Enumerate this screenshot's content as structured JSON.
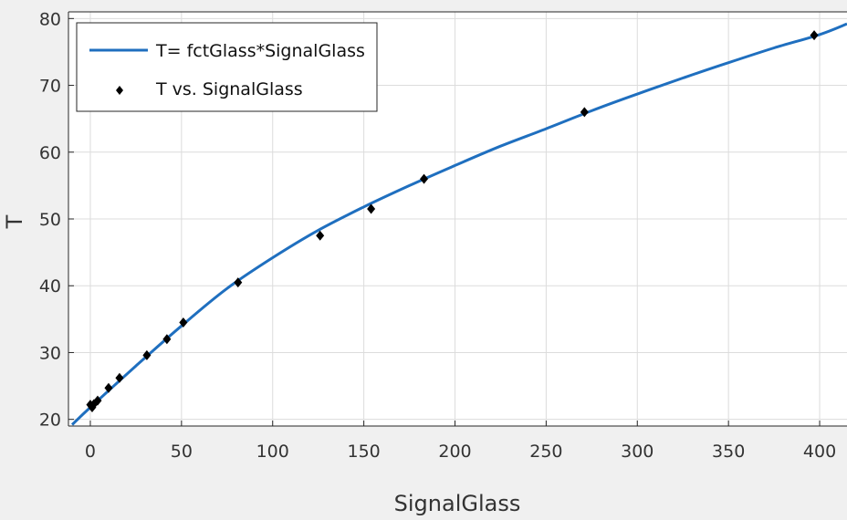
{
  "chart_data": {
    "type": "scatter",
    "xlabel": "SignalGlass",
    "ylabel": "T",
    "xlim": [
      -12,
      415
    ],
    "ylim": [
      19,
      81
    ],
    "xticks": [
      0,
      50,
      100,
      150,
      200,
      250,
      300,
      350,
      400
    ],
    "yticks": [
      20,
      30,
      40,
      50,
      60,
      70,
      80
    ],
    "grid": true,
    "legend_position": "top-left",
    "colors": {
      "fit": "#1f6fbf",
      "points": "#000000",
      "plot_bg": "#ffffff",
      "figure_bg": "#f0f0f0",
      "grid": "#dcdcdc"
    },
    "series": [
      {
        "name": "T= fctGlass*SignalGlass",
        "kind": "line",
        "x": [
          -10,
          0,
          25,
          50,
          75,
          100,
          125,
          150,
          175,
          200,
          225,
          250,
          275,
          300,
          325,
          350,
          375,
          400,
          415
        ],
        "y": [
          19.2,
          21.8,
          28.0,
          34.0,
          39.6,
          44.2,
          48.3,
          51.8,
          55.0,
          58.0,
          60.9,
          63.5,
          66.2,
          68.7,
          71.1,
          73.4,
          75.6,
          77.6,
          79.2
        ]
      },
      {
        "name": "T vs. SignalGlass",
        "kind": "scatter",
        "x": [
          0,
          1,
          2,
          4,
          10,
          16,
          31,
          42,
          51,
          81,
          126,
          154,
          183,
          271,
          397
        ],
        "y": [
          22.2,
          21.8,
          22.3,
          22.8,
          24.7,
          26.2,
          29.6,
          32.0,
          34.5,
          40.5,
          47.5,
          51.5,
          56.0,
          66.0,
          77.5
        ]
      }
    ]
  }
}
